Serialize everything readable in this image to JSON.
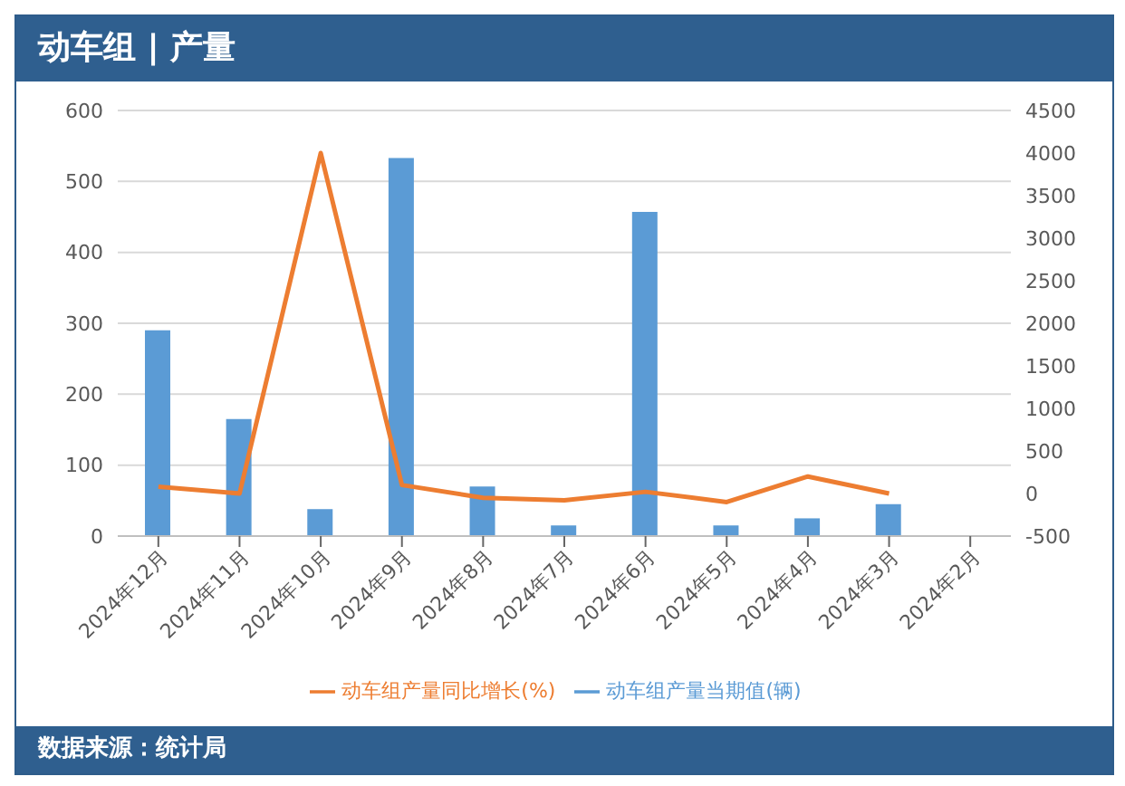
{
  "chart_data": {
    "type": "bar",
    "title": "动车组 | 产量",
    "categories": [
      "2024年12月",
      "2024年11月",
      "2024年10月",
      "2024年9月",
      "2024年8月",
      "2024年7月",
      "2024年6月",
      "2024年5月",
      "2024年4月",
      "2024年3月",
      "2024年2月"
    ],
    "series": [
      {
        "name": "动车组产量当期值(辆)",
        "color": "#5b9bd5",
        "values": [
          290,
          165,
          38,
          533,
          70,
          15,
          457,
          15,
          25,
          45,
          null
        ]
      },
      {
        "name": "动车组产量同比增长(%)",
        "type": "line",
        "axis": "y2",
        "color": "#ed7d31",
        "values": [
          80,
          0,
          4000,
          100,
          -50,
          -80,
          20,
          -100,
          200,
          0,
          null
        ]
      }
    ],
    "ylim": [
      0,
      600
    ],
    "yticks": [
      0,
      100,
      200,
      300,
      400,
      500,
      600
    ],
    "y2lim": [
      -500,
      4500
    ],
    "y2ticks": [
      -500,
      0,
      500,
      1000,
      1500,
      2000,
      2500,
      3000,
      3500,
      4000,
      4500
    ],
    "grid": "y",
    "legend": "bottom",
    "marker": "none",
    "line_style": "solid",
    "annotations": [
      "数据来源：统计局"
    ]
  }
}
